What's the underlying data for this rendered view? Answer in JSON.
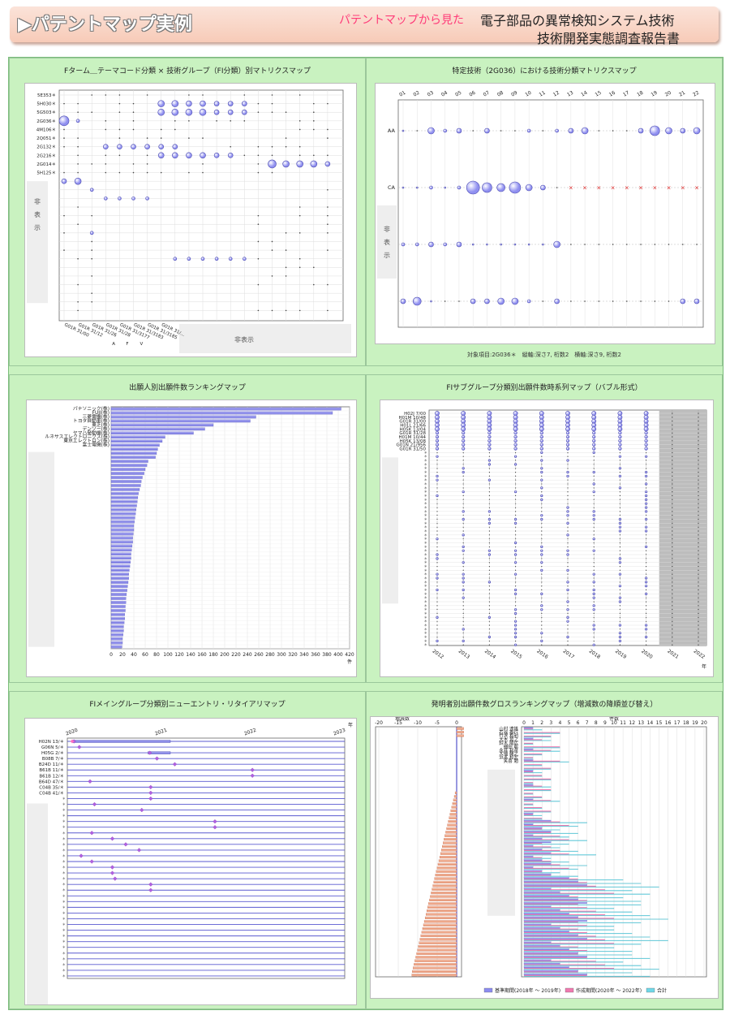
{
  "header": {
    "title": "▶パテントマップ実例",
    "subtitle": "パテントマップから見た",
    "line1": "電子部品の異常検知システム技術",
    "line2": "技術開発実態調査報告書"
  },
  "panels": [
    {
      "title": "Fターム＿テーマコード分類 × 技術グループ（FI分類）別マトリクスマップ"
    },
    {
      "title": "特定技術（2G036）における技術分類マトリクスマップ"
    },
    {
      "title": "出願人別出願件数ランキングマップ"
    },
    {
      "title": "FIサブグループ分類別出願件数時系列マップ（バブル形式）"
    },
    {
      "title": "FIメイングループ分類別ニューエントリ・リタイアリマップ"
    },
    {
      "title": "発明者別出願件数グロスランキングマップ（増減数の降順並び替え）"
    }
  ],
  "chart_data": [
    {
      "type": "scatter",
      "rows": [
        "5E353＊",
        "5H030＊",
        "5G503＊",
        "2G036＊",
        "4M106＊",
        "2Q051＊",
        "2G132＊",
        "2G216＊",
        "2G014＊",
        "5H125＊"
      ],
      "columns": [
        "G01R 31/00",
        "G01R 31/12",
        "G01R 31/26",
        "G01R 31/28",
        "G01R 31/3177",
        "G01R 31/3183",
        "G01R 31/3185",
        "G01R 31/..."
      ],
      "column_letters": [
        "A",
        "F",
        "V"
      ],
      "hidden_label_y": "非表示",
      "hidden_label_x": "非表示"
    },
    {
      "type": "scatter",
      "columns": [
        "01",
        "02",
        "03",
        "04",
        "05",
        "06",
        "07",
        "08",
        "09",
        "10",
        "11",
        "12",
        "13",
        "14",
        "15",
        "16",
        "17",
        "18",
        "19",
        "20",
        "21",
        "22"
      ],
      "rows": [
        "AA",
        "CA"
      ],
      "hidden_label": "非表示",
      "ca_cross_from": 13,
      "footer": "対象項目:2G036＊　縦軸:深さ7, 桁数2　横軸:深さ9, 桁数2"
    },
    {
      "type": "bar",
      "categories": [
        "パナソニック(株)",
        "FUJI(株)",
        "三菱電機(株)",
        "トヨタ自動車(株)",
        "東芝(株)",
        "デンソー(株)",
        "ヤマハ発動機(株)",
        "ルネサスエレクトロニクス(株)",
        "東京エレクトロン(株)",
        "富士電機(株)"
      ],
      "values": [
        405,
        390,
        255,
        245,
        180,
        165,
        145,
        95,
        90,
        85
      ],
      "tail_values": [
        82,
        80,
        78,
        65,
        63,
        60,
        58,
        55,
        53,
        52,
        50,
        48,
        47,
        46,
        45,
        44,
        43,
        42,
        41,
        40,
        40,
        39,
        38,
        38,
        37,
        36,
        35,
        35,
        34,
        33,
        32,
        31,
        31,
        30,
        29,
        28,
        27,
        26,
        26,
        25,
        25,
        24,
        24,
        23,
        22,
        22,
        21,
        20,
        20,
        19
      ],
      "xticks": [
        0,
        20,
        40,
        60,
        80,
        100,
        120,
        140,
        160,
        180,
        200,
        220,
        240,
        260,
        280,
        300,
        320,
        340,
        360,
        380,
        400,
        420
      ],
      "xlim": [
        0,
        420
      ],
      "unit": "件"
    },
    {
      "type": "scatter",
      "rows": [
        "H02J 7/00",
        "H01M 10/48",
        "G01R 31/00",
        "H01L 21/66",
        "H05K 13/04",
        "G01R 31/28",
        "H01M 10/44",
        "H05K 13/08",
        "G01N 21/956",
        "G01R 31/50"
      ],
      "years": [
        "2012",
        "2013",
        "2014",
        "2015",
        "2016",
        "2017",
        "2018",
        "2019",
        "2020",
        "2021",
        "2022"
      ],
      "unit": "年"
    },
    {
      "type": "scatter",
      "rows": [
        "H02N 13/＊",
        "G06N 5/＊",
        "H05G 2/＊",
        "B08B 7/＊",
        "B24D 11/＊",
        "B61B 11/＊",
        "B61B 12/＊",
        "B64D 47/＊",
        "C04B 35/＊",
        "C04B 41/＊"
      ],
      "years": [
        "2020",
        "2021",
        "2022",
        "2023"
      ],
      "unit": "年"
    },
    {
      "type": "bar",
      "inventors": [
        "山村 達雄",
        "石谷 泰行",
        "竹沢 和利",
        "大木 晃之",
        "鈴木 陽広",
        "細田 聡",
        "永井 利彦",
        "大場 輝之",
        "浜本 和宏",
        "笑喜 勉"
      ],
      "left_title": "増減数",
      "left_xticks": [
        "-20",
        "-15",
        "-10",
        "-5",
        "0"
      ],
      "right_title": "件数",
      "right_xticks": [
        "0",
        "1",
        "2",
        "3",
        "4",
        "5",
        "6",
        "7",
        "8",
        "9",
        "10",
        "11",
        "12",
        "13",
        "14",
        "15",
        "16",
        "17",
        "18",
        "19",
        "20"
      ],
      "legend": [
        "基準期間(2018年 ～ 2019年)",
        "作成期間(2020年 ～ 2022年)",
        "合計"
      ]
    }
  ]
}
